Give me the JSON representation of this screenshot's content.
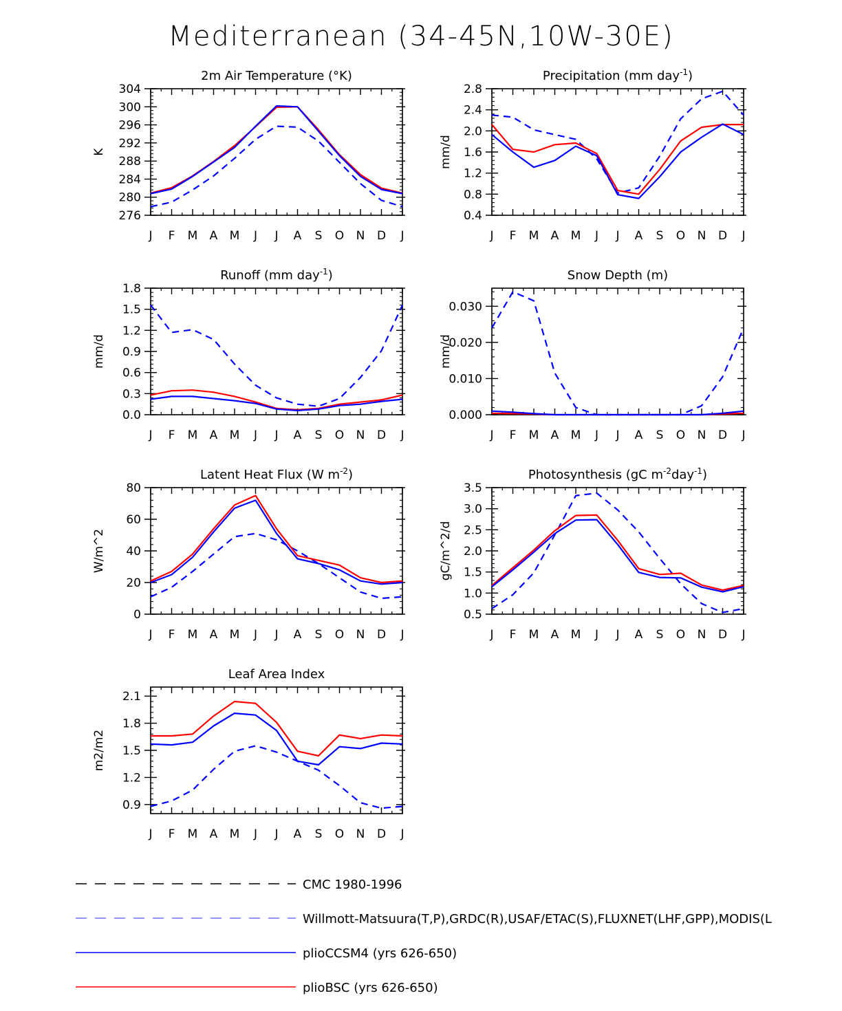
{
  "figure": {
    "title": "Mediterranean (34-45N,10W-30E)"
  },
  "months": [
    "J",
    "F",
    "M",
    "A",
    "M",
    "J",
    "J",
    "A",
    "S",
    "O",
    "N",
    "D",
    "J"
  ],
  "colors": {
    "red": "#ff0000",
    "blue": "#0000ff",
    "black": "#000000",
    "light_blue": "#6f6fff"
  },
  "chart_data": [
    {
      "id": "temp",
      "type": "line",
      "title": "2m Air Temperature (°K)",
      "ylabel": "K",
      "ylim": [
        276,
        304
      ],
      "yticks": [
        276,
        280,
        284,
        288,
        292,
        296,
        300,
        304
      ],
      "ytick_labels": [
        "276",
        "280",
        "284",
        "288",
        "292",
        "296",
        "300",
        "304"
      ],
      "series": [
        {
          "name": "plioBSC",
          "style": "red-solid",
          "values": [
            280.9,
            282.1,
            284.7,
            287.9,
            291.4,
            295.6,
            299.9,
            300.0,
            294.9,
            289.4,
            285.0,
            282.0,
            280.9
          ]
        },
        {
          "name": "plioCCSM4",
          "style": "blue-solid",
          "values": [
            280.8,
            281.8,
            284.6,
            287.8,
            291.0,
            295.7,
            300.2,
            300.0,
            294.6,
            289.2,
            284.6,
            281.7,
            280.8
          ]
        },
        {
          "name": "Willmott-Matsuura",
          "style": "blue-dash",
          "values": [
            277.9,
            278.9,
            281.6,
            284.7,
            288.6,
            292.8,
            295.7,
            295.5,
            292.4,
            287.7,
            283.0,
            279.3,
            277.9
          ]
        }
      ]
    },
    {
      "id": "precip",
      "type": "line",
      "title": "Precipitation (mm day",
      "title_sup": "-1",
      "title_end": ")",
      "ylabel": "mm/d",
      "ylim": [
        0.4,
        2.8
      ],
      "yticks": [
        0.4,
        0.8,
        1.2,
        1.6,
        2.0,
        2.4,
        2.8
      ],
      "ytick_labels": [
        "0.4",
        "0.8",
        "1.2",
        "1.6",
        "2.0",
        "2.4",
        "2.8"
      ],
      "series": [
        {
          "name": "plioBSC",
          "style": "red-solid",
          "values": [
            2.12,
            1.65,
            1.6,
            1.74,
            1.77,
            1.57,
            0.87,
            0.8,
            1.27,
            1.81,
            2.07,
            2.12,
            2.12
          ]
        },
        {
          "name": "plioCCSM4",
          "style": "blue-solid",
          "values": [
            1.93,
            1.6,
            1.31,
            1.44,
            1.71,
            1.53,
            0.79,
            0.72,
            1.13,
            1.6,
            1.88,
            2.13,
            1.93
          ]
        },
        {
          "name": "Willmott-Matsuura",
          "style": "blue-dash",
          "values": [
            2.3,
            2.26,
            2.02,
            1.93,
            1.84,
            1.47,
            0.82,
            0.92,
            1.52,
            2.23,
            2.61,
            2.75,
            2.3
          ]
        }
      ]
    },
    {
      "id": "runoff",
      "type": "line",
      "title": "Runoff (mm day",
      "title_sup": "-1",
      "title_end": ")",
      "ylabel": "mm/d",
      "ylim": [
        0.0,
        1.8
      ],
      "yticks": [
        0.0,
        0.3,
        0.6,
        0.9,
        1.2,
        1.5,
        1.8
      ],
      "ytick_labels": [
        "0.0",
        "0.3",
        "0.6",
        "0.9",
        "1.2",
        "1.5",
        "1.8"
      ],
      "series": [
        {
          "name": "plioBSC",
          "style": "red-solid",
          "values": [
            0.28,
            0.34,
            0.35,
            0.32,
            0.26,
            0.18,
            0.09,
            0.07,
            0.09,
            0.15,
            0.18,
            0.21,
            0.28
          ]
        },
        {
          "name": "plioCCSM4",
          "style": "blue-solid",
          "values": [
            0.22,
            0.26,
            0.26,
            0.23,
            0.2,
            0.16,
            0.08,
            0.06,
            0.08,
            0.13,
            0.15,
            0.19,
            0.22
          ]
        },
        {
          "name": "GRDC",
          "style": "blue-dash",
          "values": [
            1.56,
            1.17,
            1.21,
            1.07,
            0.72,
            0.42,
            0.24,
            0.15,
            0.12,
            0.23,
            0.53,
            0.91,
            1.56
          ]
        }
      ]
    },
    {
      "id": "snow",
      "type": "line",
      "title": "Snow Depth (m)",
      "ylabel": "mm/d",
      "ylim": [
        0.0,
        0.035
      ],
      "yticks": [
        0.0,
        0.01,
        0.02,
        0.03
      ],
      "ytick_labels": [
        "0.000",
        "0.010",
        "0.020",
        "0.030"
      ],
      "series": [
        {
          "name": "plioBSC",
          "style": "red-solid",
          "values": [
            0.0004,
            0.0003,
            0.0002,
            0,
            0,
            0,
            0,
            0,
            0,
            0,
            0,
            0.0002,
            0.0004
          ]
        },
        {
          "name": "plioCCSM4",
          "style": "blue-solid",
          "values": [
            0.001,
            0.0007,
            0.0003,
            0,
            0,
            0,
            0,
            0,
            0,
            0,
            0,
            0.0004,
            0.001
          ]
        },
        {
          "name": "USAF/ETAC",
          "style": "blue-dash",
          "values": [
            0.024,
            0.034,
            0.0315,
            0.0115,
            0.002,
            0,
            0,
            0,
            0,
            0,
            0.0025,
            0.0105,
            0.024
          ]
        }
      ]
    },
    {
      "id": "lhf",
      "type": "line",
      "title": "Latent Heat Flux (W m",
      "title_sup": "-2",
      "title_end": ")",
      "ylabel": "W/m^2",
      "ylim": [
        0,
        80
      ],
      "yticks": [
        0,
        20,
        40,
        60,
        80
      ],
      "ytick_labels": [
        "0",
        "20",
        "40",
        "60",
        "80"
      ],
      "series": [
        {
          "name": "plioBSC",
          "style": "red-solid",
          "values": [
            21,
            27,
            38,
            54,
            69,
            75,
            54,
            37,
            34,
            31,
            23,
            20,
            21
          ]
        },
        {
          "name": "plioCCSM4",
          "style": "blue-solid",
          "values": [
            20,
            25,
            36,
            52,
            67,
            72,
            51,
            35,
            32,
            28,
            21,
            19,
            20
          ]
        },
        {
          "name": "FLUXNET",
          "style": "blue-dash",
          "values": [
            11,
            17,
            27,
            38,
            49,
            51,
            47,
            40,
            32,
            23,
            14,
            10,
            11
          ]
        }
      ]
    },
    {
      "id": "gpp",
      "type": "line",
      "title": "Photosynthesis (gC m",
      "title_sup": "-2",
      "title_mid": "day",
      "title_sup2": "-1",
      "title_end": ")",
      "ylabel": "gC/m^2/d",
      "ylim": [
        0.5,
        3.5
      ],
      "yticks": [
        0.5,
        1.0,
        1.5,
        2.0,
        2.5,
        3.0,
        3.5
      ],
      "ytick_labels": [
        "0.5",
        "1.0",
        "1.5",
        "2.0",
        "2.5",
        "3.0",
        "3.5"
      ],
      "series": [
        {
          "name": "plioBSC",
          "style": "red-solid",
          "values": [
            1.18,
            1.6,
            2.02,
            2.48,
            2.84,
            2.85,
            2.25,
            1.58,
            1.44,
            1.47,
            1.19,
            1.07,
            1.18
          ]
        },
        {
          "name": "plioCCSM4",
          "style": "blue-solid",
          "values": [
            1.15,
            1.55,
            1.97,
            2.41,
            2.73,
            2.74,
            2.15,
            1.49,
            1.37,
            1.36,
            1.14,
            1.03,
            1.15
          ]
        },
        {
          "name": "FLUXNET",
          "style": "blue-dash",
          "values": [
            0.63,
            0.96,
            1.48,
            2.38,
            3.31,
            3.37,
            2.97,
            2.45,
            1.82,
            1.22,
            0.75,
            0.54,
            0.63
          ]
        }
      ]
    },
    {
      "id": "lai",
      "type": "line",
      "title": "Leaf Area Index",
      "ylabel": "m2/m2",
      "ylim": [
        0.8,
        2.2
      ],
      "yticks": [
        0.9,
        1.2,
        1.5,
        1.8,
        2.1
      ],
      "ytick_labels": [
        "0.9",
        "1.2",
        "1.5",
        "1.8",
        "2.1"
      ],
      "series": [
        {
          "name": "plioBSC",
          "style": "red-solid",
          "values": [
            1.66,
            1.66,
            1.68,
            1.88,
            2.04,
            2.02,
            1.81,
            1.49,
            1.44,
            1.67,
            1.63,
            1.67,
            1.66
          ]
        },
        {
          "name": "plioCCSM4",
          "style": "blue-solid",
          "values": [
            1.57,
            1.56,
            1.59,
            1.77,
            1.91,
            1.89,
            1.72,
            1.38,
            1.34,
            1.54,
            1.52,
            1.58,
            1.57
          ]
        },
        {
          "name": "MODIS",
          "style": "blue-dash",
          "values": [
            0.88,
            0.94,
            1.06,
            1.29,
            1.49,
            1.55,
            1.48,
            1.38,
            1.28,
            1.11,
            0.92,
            0.86,
            0.88
          ]
        }
      ]
    }
  ],
  "legend": [
    {
      "label": "CMC 1980-1996",
      "style": "black-dash"
    },
    {
      "label": "Willmott-Matsuura(T,P),GRDC(R),USAF/ETAC(S),FLUXNET(LHF,GPP),MODIS(L",
      "style": "lightblue-dash"
    },
    {
      "label": "plioCCSM4 (yrs 626-650)",
      "style": "blue-solid"
    },
    {
      "label": "plioBSC (yrs 626-650)",
      "style": "red-solid"
    }
  ]
}
